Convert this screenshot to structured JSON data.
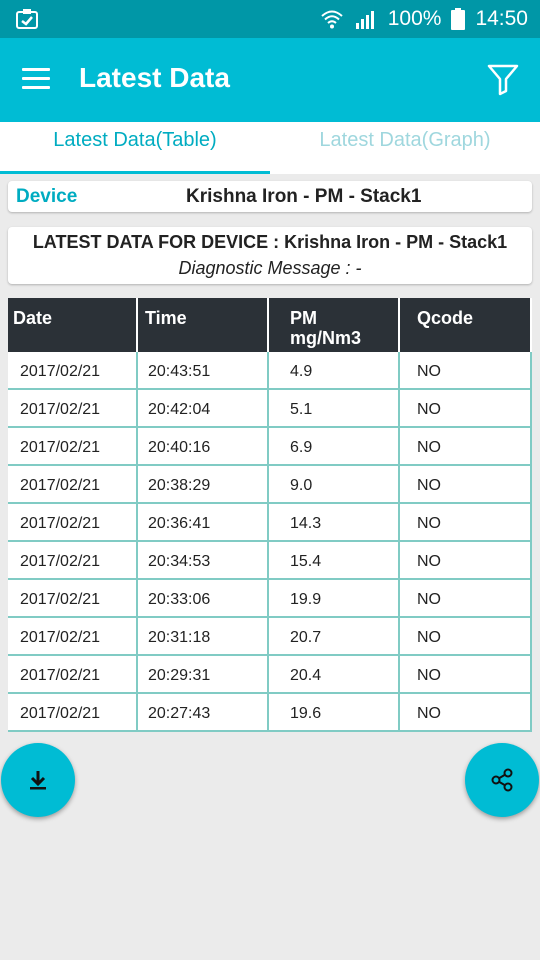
{
  "status_bar": {
    "battery": "100%",
    "time": "14:50"
  },
  "app_bar": {
    "title": "Latest Data"
  },
  "tabs": [
    {
      "label": "Latest Data(Table)"
    },
    {
      "label": "Latest Data(Graph)"
    }
  ],
  "device": {
    "label": "Device",
    "name": "Krishna Iron - PM - Stack1"
  },
  "info": {
    "header": "LATEST DATA FOR DEVICE : Krishna Iron - PM - Stack1",
    "diagnostic": "Diagnostic Message : -"
  },
  "table": {
    "headers": {
      "date": "Date",
      "time": "Time",
      "pm": "PM",
      "pm_unit": "mg/Nm3",
      "qcode": "Qcode"
    },
    "rows": [
      {
        "date": "2017/02/21",
        "time": "20:43:51",
        "pm": "4.9",
        "qcode": "NO"
      },
      {
        "date": "2017/02/21",
        "time": "20:42:04",
        "pm": "5.1",
        "qcode": "NO"
      },
      {
        "date": "2017/02/21",
        "time": "20:40:16",
        "pm": "6.9",
        "qcode": "NO"
      },
      {
        "date": "2017/02/21",
        "time": "20:38:29",
        "pm": "9.0",
        "qcode": "NO"
      },
      {
        "date": "2017/02/21",
        "time": "20:36:41",
        "pm": "14.3",
        "qcode": "NO"
      },
      {
        "date": "2017/02/21",
        "time": "20:34:53",
        "pm": "15.4",
        "qcode": "NO"
      },
      {
        "date": "2017/02/21",
        "time": "20:33:06",
        "pm": "19.9",
        "qcode": "NO"
      },
      {
        "date": "2017/02/21",
        "time": "20:31:18",
        "pm": "20.7",
        "qcode": "NO"
      },
      {
        "date": "2017/02/21",
        "time": "20:29:31",
        "pm": "20.4",
        "qcode": "NO"
      },
      {
        "date": "2017/02/21",
        "time": "20:27:43",
        "pm": "19.6",
        "qcode": "NO"
      }
    ]
  },
  "icons": {
    "download": "download-icon",
    "share": "share-icon",
    "filter": "filter-icon",
    "menu": "hamburger-menu-icon"
  },
  "colors": {
    "status_bar": "#0097a7",
    "app_bar": "#00bcd4",
    "accent": "#00acc1",
    "header_row": "#2b3137",
    "cell_border": "#80cbc4"
  }
}
